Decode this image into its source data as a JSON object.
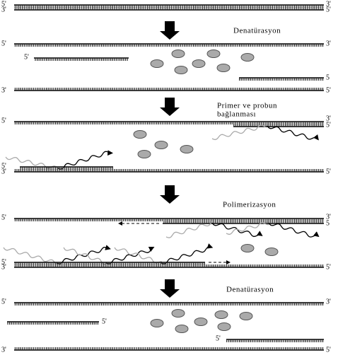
{
  "steps": [
    {
      "label_lines": [
        "Denatürasyon"
      ]
    },
    {
      "label_lines": [
        "Primer ve probun",
        "bağlanması"
      ]
    },
    {
      "label_lines": [
        "Polimerizasyon"
      ]
    },
    {
      "label_lines": [
        "Denatürasyon"
      ]
    }
  ],
  "end_labels": [
    "5'",
    "3'",
    "3'",
    "5'",
    "5'",
    "3'",
    "5'",
    "5",
    "3'",
    "5'",
    "5'",
    "3'",
    "5'",
    "5'",
    "3'",
    "5'",
    "5'",
    "3'",
    "5",
    "5'",
    "3'",
    "5'",
    "5'",
    "3'",
    "5'",
    "5'",
    "3'",
    "5'"
  ]
}
